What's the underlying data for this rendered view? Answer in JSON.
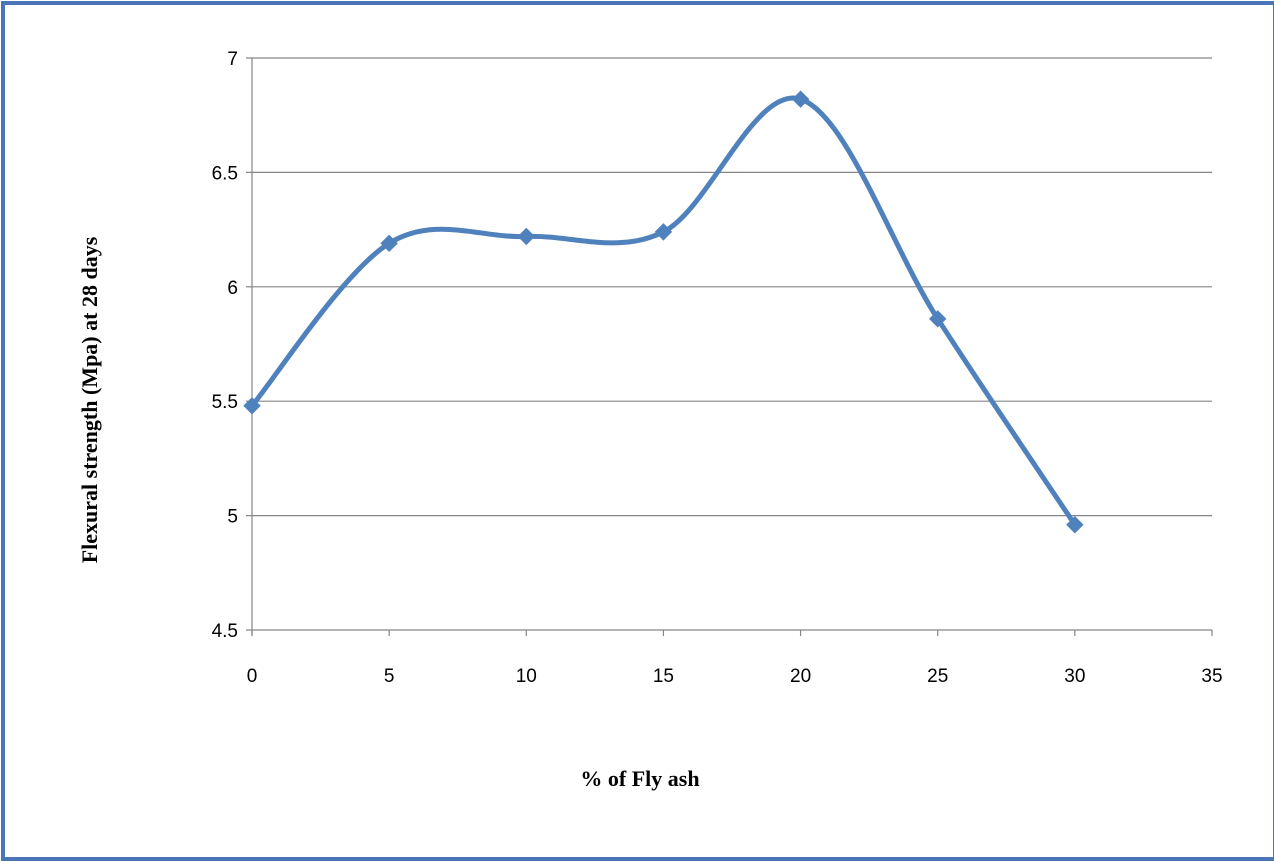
{
  "chart_data": {
    "type": "line",
    "title": "",
    "xlabel": "% of Fly ash",
    "ylabel": "Flexural strength (Mpa) at 28 days",
    "xlim": [
      0,
      35
    ],
    "ylim": [
      4.5,
      7
    ],
    "x_ticks": [
      "0",
      "5",
      "10",
      "15",
      "20",
      "25",
      "30",
      "35"
    ],
    "y_ticks": [
      "4.5",
      "5",
      "5.5",
      "6",
      "6.5",
      "7"
    ],
    "grid": "horizontal",
    "smooth": true,
    "legend": "none",
    "colors": {
      "series": "#4f81bd",
      "border": "#4a76b8",
      "grid": "#868686"
    },
    "series": [
      {
        "marker": "diamond",
        "x": [
          0,
          5,
          10,
          15,
          20,
          25,
          30
        ],
        "y": [
          5.48,
          6.19,
          6.22,
          6.24,
          6.82,
          5.86,
          4.96
        ]
      }
    ]
  }
}
